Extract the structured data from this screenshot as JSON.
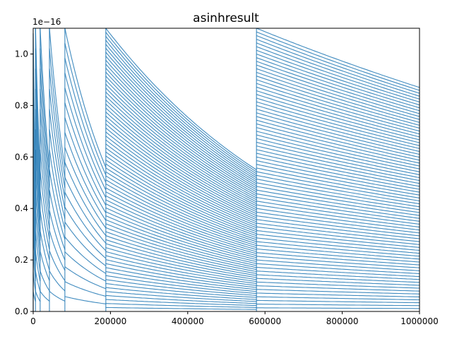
{
  "chart_data": {
    "type": "scatter",
    "title": "asinhresult",
    "xlabel": "",
    "ylabel": "",
    "offset_text": "1e−16",
    "xlim": [
      0,
      1000000
    ],
    "ylim": [
      0,
      1.1
    ],
    "x_ticks": [
      0,
      200000,
      400000,
      600000,
      800000,
      1000000
    ],
    "x_tick_labels": [
      "0",
      "200000",
      "400000",
      "600000",
      "800000",
      "1000000"
    ],
    "y_ticks": [
      0.0,
      0.2,
      0.4,
      0.6,
      0.8,
      1.0
    ],
    "y_tick_labels": [
      "0.0",
      "0.2",
      "0.4",
      "0.6",
      "0.8",
      "1.0"
    ],
    "grid": false,
    "marker_color": "#1f77b4",
    "series": [
      {
        "segments": [
          {
            "x_start": 0,
            "x_end": 6000,
            "y_top_start": 1.08,
            "y_top_end": 0.55
          },
          {
            "x_start": 6000,
            "x_end": 18000,
            "y_top_start": 1.1,
            "y_top_end": 0.55
          },
          {
            "x_start": 18000,
            "x_end": 42000,
            "y_top_start": 1.1,
            "y_top_end": 0.56
          },
          {
            "x_start": 42000,
            "x_end": 82000,
            "y_top_start": 1.1,
            "y_top_end": 0.56
          },
          {
            "x_start": 82000,
            "x_end": 188000,
            "y_top_start": 1.1,
            "y_top_end": 0.56
          },
          {
            "x_start": 188000,
            "x_end": 578000,
            "y_top_start": 1.1,
            "y_top_end": 0.55
          },
          {
            "x_start": 578000,
            "x_end": 1000000,
            "y_top_start": 1.1,
            "y_top_end": 0.87
          }
        ]
      }
    ]
  }
}
